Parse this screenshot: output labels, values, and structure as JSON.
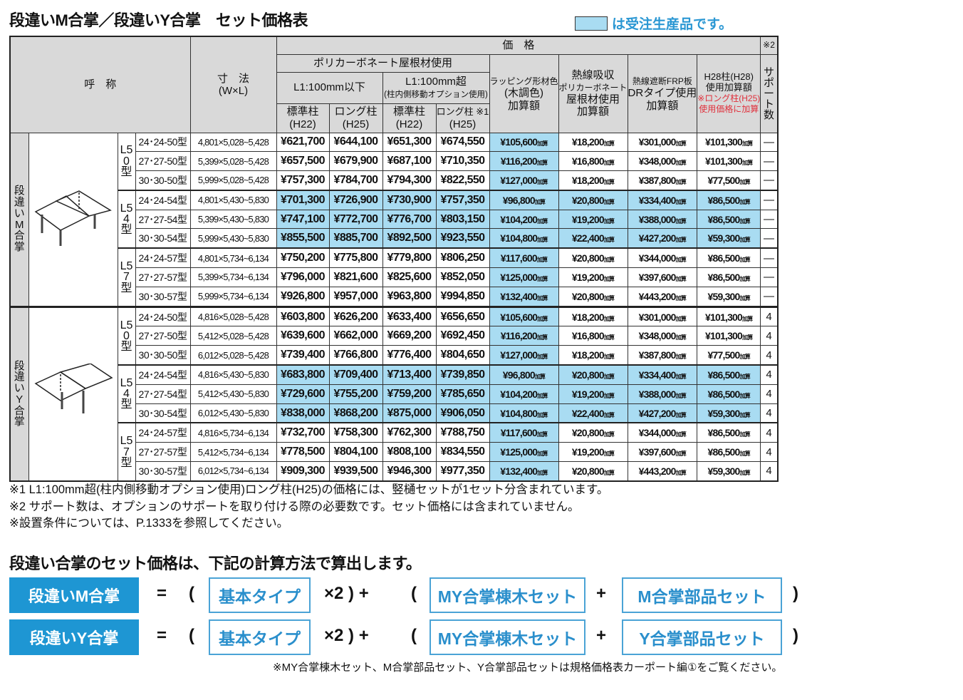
{
  "title": "段違いM合掌／段違いY合掌　セット価格表",
  "legend": {
    "text": "は受注生産品です。",
    "color": "#a9dcf2"
  },
  "header": {
    "name": "呼　称",
    "size": "寸　法",
    "size_sub": "(W×L)",
    "price": "価　格",
    "poly": "ポリカーボネート屋根材使用",
    "l1_under": "L1:100mm以下",
    "l1_over": "L1:100mm超",
    "l1_over_sub": "(柱内側移動オプション使用)",
    "std1": "標準柱",
    "std1_sub": "(H22)",
    "long1": "ロング柱",
    "long1_sub": "(H25)",
    "std2": "標準柱",
    "std2_sub": "(H22)",
    "long2": "ロング柱 ※1",
    "long2_sub": "(H25)",
    "wrap": [
      "ラッピング形材色",
      "(木調色)",
      "加算額"
    ],
    "heat": [
      "熱線吸収",
      "ポリカーボネート",
      "屋根材使用",
      "加算額"
    ],
    "frp": [
      "熱線遮断FRP板",
      "DRタイプ使用",
      "加算額"
    ],
    "h28": [
      "H28柱(H28)",
      "使用加算額",
      "※ロング柱(H25)",
      "使用価格に加算"
    ],
    "note2": "※2",
    "support": "サポート数"
  },
  "add_suffix": "加算",
  "groups": [
    {
      "label": "段違いM合掌",
      "image": "step-m-gassho-carport-diagram",
      "subgroups": [
        {
          "label": "L50型",
          "highlight": false,
          "rows": [
            {
              "model": "24･24-50型",
              "size": "4,801×5,028~5,428",
              "prices": [
                "¥621,700",
                "¥644,100",
                "¥651,300",
                "¥674,550"
              ],
              "wrap": "¥105,600",
              "heat": "¥18,200",
              "frp": "¥301,000",
              "h28": "¥101,300",
              "support": "—"
            },
            {
              "model": "27･27-50型",
              "size": "5,399×5,028~5,428",
              "prices": [
                "¥657,500",
                "¥679,900",
                "¥687,100",
                "¥710,350"
              ],
              "wrap": "¥116,200",
              "heat": "¥16,800",
              "frp": "¥348,000",
              "h28": "¥101,300",
              "support": "—"
            },
            {
              "model": "30･30-50型",
              "size": "5,999×5,028~5,428",
              "prices": [
                "¥757,300",
                "¥784,700",
                "¥794,300",
                "¥822,550"
              ],
              "wrap": "¥127,000",
              "heat": "¥18,200",
              "frp": "¥387,800",
              "h28": "¥77,500",
              "support": "—"
            }
          ]
        },
        {
          "label": "L54型",
          "highlight": true,
          "rows": [
            {
              "model": "24･24-54型",
              "size": "4,801×5,430~5,830",
              "prices": [
                "¥701,300",
                "¥726,900",
                "¥730,900",
                "¥757,350"
              ],
              "wrap": "¥96,800",
              "heat": "¥20,800",
              "frp": "¥334,400",
              "h28": "¥86,500",
              "support": "—"
            },
            {
              "model": "27･27-54型",
              "size": "5,399×5,430~5,830",
              "prices": [
                "¥747,100",
                "¥772,700",
                "¥776,700",
                "¥803,150"
              ],
              "wrap": "¥104,200",
              "heat": "¥19,200",
              "frp": "¥388,000",
              "h28": "¥86,500",
              "support": "—"
            },
            {
              "model": "30･30-54型",
              "size": "5,999×5,430~5,830",
              "prices": [
                "¥855,500",
                "¥885,700",
                "¥892,500",
                "¥923,550"
              ],
              "wrap": "¥104,800",
              "heat": "¥22,400",
              "frp": "¥427,200",
              "h28": "¥59,300",
              "support": "—"
            }
          ]
        },
        {
          "label": "L57型",
          "highlight": false,
          "rows": [
            {
              "model": "24･24-57型",
              "size": "4,801×5,734~6,134",
              "prices": [
                "¥750,200",
                "¥775,800",
                "¥779,800",
                "¥806,250"
              ],
              "wrap": "¥117,600",
              "heat": "¥20,800",
              "frp": "¥344,000",
              "h28": "¥86,500",
              "support": "—"
            },
            {
              "model": "27･27-57型",
              "size": "5,399×5,734~6,134",
              "prices": [
                "¥796,000",
                "¥821,600",
                "¥825,600",
                "¥852,050"
              ],
              "wrap": "¥125,000",
              "heat": "¥19,200",
              "frp": "¥397,600",
              "h28": "¥86,500",
              "support": "—"
            },
            {
              "model": "30･30-57型",
              "size": "5,999×5,734~6,134",
              "prices": [
                "¥926,800",
                "¥957,000",
                "¥963,800",
                "¥994,850"
              ],
              "wrap": "¥132,400",
              "heat": "¥20,800",
              "frp": "¥443,200",
              "h28": "¥59,300",
              "support": "—"
            }
          ]
        }
      ]
    },
    {
      "label": "段違いY合掌",
      "image": "step-y-gassho-carport-diagram",
      "subgroups": [
        {
          "label": "L50型",
          "highlight": false,
          "rows": [
            {
              "model": "24･24-50型",
              "size": "4,816×5,028~5,428",
              "prices": [
                "¥603,800",
                "¥626,200",
                "¥633,400",
                "¥656,650"
              ],
              "wrap": "¥105,600",
              "heat": "¥18,200",
              "frp": "¥301,000",
              "h28": "¥101,300",
              "support": "4"
            },
            {
              "model": "27･27-50型",
              "size": "5,412×5,028~5,428",
              "prices": [
                "¥639,600",
                "¥662,000",
                "¥669,200",
                "¥692,450"
              ],
              "wrap": "¥116,200",
              "heat": "¥16,800",
              "frp": "¥348,000",
              "h28": "¥101,300",
              "support": "4"
            },
            {
              "model": "30･30-50型",
              "size": "6,012×5,028~5,428",
              "prices": [
                "¥739,400",
                "¥766,800",
                "¥776,400",
                "¥804,650"
              ],
              "wrap": "¥127,000",
              "heat": "¥18,200",
              "frp": "¥387,800",
              "h28": "¥77,500",
              "support": "4"
            }
          ]
        },
        {
          "label": "L54型",
          "highlight": true,
          "rows": [
            {
              "model": "24･24-54型",
              "size": "4,816×5,430~5,830",
              "prices": [
                "¥683,800",
                "¥709,400",
                "¥713,400",
                "¥739,850"
              ],
              "wrap": "¥96,800",
              "heat": "¥20,800",
              "frp": "¥334,400",
              "h28": "¥86,500",
              "support": "4"
            },
            {
              "model": "27･27-54型",
              "size": "5,412×5,430~5,830",
              "prices": [
                "¥729,600",
                "¥755,200",
                "¥759,200",
                "¥785,650"
              ],
              "wrap": "¥104,200",
              "heat": "¥19,200",
              "frp": "¥388,000",
              "h28": "¥86,500",
              "support": "4"
            },
            {
              "model": "30･30-54型",
              "size": "6,012×5,430~5,830",
              "prices": [
                "¥838,000",
                "¥868,200",
                "¥875,000",
                "¥906,050"
              ],
              "wrap": "¥104,800",
              "heat": "¥22,400",
              "frp": "¥427,200",
              "h28": "¥59,300",
              "support": "4"
            }
          ]
        },
        {
          "label": "L57型",
          "highlight": false,
          "rows": [
            {
              "model": "24･24-57型",
              "size": "4,816×5,734~6,134",
              "prices": [
                "¥732,700",
                "¥758,300",
                "¥762,300",
                "¥788,750"
              ],
              "wrap": "¥117,600",
              "heat": "¥20,800",
              "frp": "¥344,000",
              "h28": "¥86,500",
              "support": "4"
            },
            {
              "model": "27･27-57型",
              "size": "5,412×5,734~6,134",
              "prices": [
                "¥778,500",
                "¥804,100",
                "¥808,100",
                "¥834,550"
              ],
              "wrap": "¥125,000",
              "heat": "¥19,200",
              "frp": "¥397,600",
              "h28": "¥86,500",
              "support": "4"
            },
            {
              "model": "30･30-57型",
              "size": "6,012×5,734~6,134",
              "prices": [
                "¥909,300",
                "¥939,500",
                "¥946,300",
                "¥977,350"
              ],
              "wrap": "¥132,400",
              "heat": "¥20,800",
              "frp": "¥443,200",
              "h28": "¥59,300",
              "support": "4"
            }
          ]
        }
      ]
    }
  ],
  "notes": [
    "※1 L1:100mm超(柱内側移動オプション使用)ロング柱(H25)の価格には、竪樋セットが1セット分含まれています。",
    "※2 サポート数は、オプションのサポートを取り付ける際の必要数です。セット価格には含まれていません。",
    "※設置条件については、P.1333を参照してください。"
  ],
  "calc": {
    "title": "段違い合掌のセット価格は、下記の計算方法で算出します。",
    "rows": [
      {
        "label": "段違いM合掌",
        "eq": "=",
        "open1": "(",
        "base": "基本タイプ",
        "times": "×2 ) +",
        "open2": "(",
        "ridge": "MY合掌棟木セット",
        "plus": "+",
        "parts": "M合掌部品セット",
        "close": ")"
      },
      {
        "label": "段違いY合掌",
        "eq": "=",
        "open1": "(",
        "base": "基本タイプ",
        "times": "×2 ) +",
        "open2": "(",
        "ridge": "MY合掌棟木セット",
        "plus": "+",
        "parts": "Y合掌部品セット",
        "close": ")"
      }
    ],
    "footnote": "※MY合掌棟木セット、M合掌部品セット、Y合掌部品セットは規格価格表カーポート編①をご覧ください。",
    "accent": "#1e96d3"
  }
}
